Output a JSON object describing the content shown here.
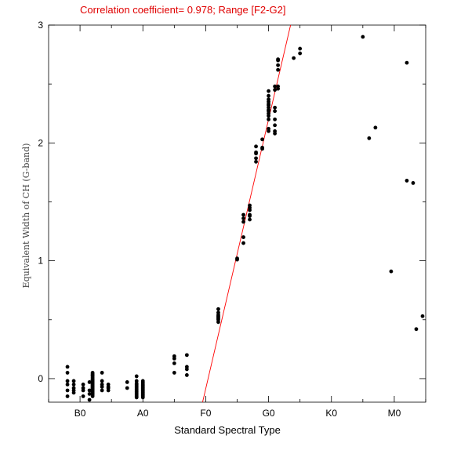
{
  "chart_data": {
    "type": "scatter",
    "title": "Correlation coefficient= 0.978; Range [F2-G2]",
    "xlabel": "Standard Spectral Type",
    "ylabel": "Equivalent Width of CH (G-band)",
    "xlim": [
      -0.5,
      5.5
    ],
    "ylim": [
      -0.2,
      3.0
    ],
    "x_ticks": [
      {
        "value": 0,
        "label": "B0"
      },
      {
        "value": 1,
        "label": "A0"
      },
      {
        "value": 2,
        "label": "F0"
      },
      {
        "value": 3,
        "label": "G0"
      },
      {
        "value": 4,
        "label": "K0"
      },
      {
        "value": 5,
        "label": "M0"
      }
    ],
    "y_ticks": [
      {
        "value": 0,
        "label": "0"
      },
      {
        "value": 1,
        "label": "1"
      },
      {
        "value": 2,
        "label": "2"
      },
      {
        "value": 3,
        "label": "3"
      }
    ],
    "grid": false,
    "series": [
      {
        "color": "#000000",
        "x": [
          -0.2,
          -0.2,
          -0.2,
          -0.2,
          -0.2,
          -0.2,
          -0.1,
          -0.1,
          -0.1,
          -0.1,
          -0.1,
          0.05,
          0.05,
          0.05,
          0.05,
          0.15,
          0.15,
          0.15,
          0.15,
          0.2,
          0.2,
          0.2,
          0.2,
          0.2,
          0.2,
          0.2,
          0.2,
          0.2,
          0.2,
          0.2,
          0.2,
          0.2,
          0.2,
          0.2,
          0.2,
          0.2,
          0.2,
          0.2,
          0.2,
          0.2,
          0.2,
          0.2,
          0.2,
          0.2,
          0.2,
          0.2,
          0.2,
          0.2,
          0.2,
          0.2,
          0.2,
          0.2,
          0.2,
          0.2,
          0.35,
          0.35,
          0.35,
          0.35,
          0.35,
          0.45,
          0.45,
          0.45,
          0.45,
          0.75,
          0.75,
          0.9,
          0.9,
          0.9,
          0.9,
          0.9,
          0.9,
          0.9,
          0.9,
          0.9,
          0.9,
          0.9,
          0.9,
          0.9,
          0.9,
          0.9,
          1.0,
          1.0,
          1.0,
          1.0,
          1.0,
          1.0,
          1.0,
          1.0,
          1.0,
          1.0,
          1.0,
          1.0,
          1.0,
          1.0,
          1.0,
          1.0,
          1.0,
          1.0,
          1.0,
          1.0,
          1.5,
          1.5,
          1.5,
          1.5,
          1.7,
          1.7,
          1.7,
          1.7,
          2.2,
          2.2,
          2.2,
          2.2,
          2.2,
          2.2,
          2.2,
          2.2,
          2.5,
          2.5,
          2.6,
          2.6,
          2.6,
          2.6,
          2.6,
          2.7,
          2.7,
          2.7,
          2.7,
          2.7,
          2.7,
          2.8,
          2.8,
          2.8,
          2.8,
          2.8,
          2.9,
          2.9,
          2.9,
          3.0,
          3.0,
          3.0,
          3.0,
          3.0,
          3.0,
          3.0,
          3.0,
          3.0,
          3.0,
          3.0,
          3.0,
          3.0,
          3.0,
          3.1,
          3.1,
          3.1,
          3.1,
          3.1,
          3.1,
          3.1,
          3.1,
          3.15,
          3.15,
          3.15,
          3.15,
          3.15,
          3.15,
          3.4,
          3.5,
          3.5,
          4.5,
          4.6,
          4.7,
          4.95,
          5.2,
          5.2,
          5.3,
          5.35,
          5.45
        ],
        "y": [
          0.1,
          0.05,
          -0.02,
          -0.05,
          -0.1,
          -0.15,
          -0.02,
          -0.05,
          -0.08,
          -0.1,
          -0.12,
          -0.05,
          -0.08,
          -0.1,
          -0.15,
          -0.03,
          -0.1,
          -0.13,
          -0.18,
          0.05,
          0.04,
          0.03,
          0.02,
          0.0,
          -0.01,
          -0.02,
          -0.03,
          -0.04,
          -0.05,
          -0.06,
          -0.07,
          -0.08,
          -0.09,
          -0.1,
          -0.11,
          -0.12,
          -0.13,
          -0.14,
          -0.15,
          -0.02,
          -0.04,
          -0.06,
          -0.08,
          -0.1,
          -0.12,
          0.03,
          0.01,
          -0.01,
          -0.03,
          -0.05,
          -0.07,
          -0.09,
          -0.11,
          -0.13,
          0.05,
          -0.02,
          -0.05,
          -0.07,
          -0.1,
          -0.05,
          -0.07,
          -0.08,
          -0.1,
          -0.03,
          -0.08,
          0.02,
          -0.02,
          -0.05,
          -0.07,
          -0.08,
          -0.1,
          -0.12,
          -0.13,
          -0.15,
          -0.06,
          -0.09,
          -0.11,
          -0.14,
          -0.04,
          -0.16,
          -0.03,
          -0.05,
          -0.07,
          -0.08,
          -0.1,
          -0.12,
          -0.15,
          -0.02,
          -0.06,
          -0.09,
          -0.11,
          -0.13,
          -0.14,
          -0.04,
          -0.16,
          -0.08,
          -0.1,
          -0.12,
          -0.06,
          -0.14,
          0.17,
          0.13,
          0.05,
          0.19,
          0.2,
          0.1,
          0.03,
          0.08,
          0.59,
          0.56,
          0.54,
          0.52,
          0.5,
          0.48,
          0.53,
          0.51,
          1.02,
          1.01,
          1.39,
          1.36,
          1.33,
          1.2,
          1.15,
          1.47,
          1.45,
          1.43,
          1.38,
          1.35,
          1.39,
          1.97,
          1.92,
          1.84,
          1.87,
          1.91,
          1.95,
          2.03,
          1.96,
          2.44,
          2.4,
          2.37,
          2.33,
          2.3,
          2.27,
          2.23,
          2.2,
          2.12,
          2.35,
          2.32,
          2.25,
          2.28,
          2.1,
          2.48,
          2.45,
          2.3,
          2.27,
          2.2,
          2.1,
          2.08,
          2.15,
          2.71,
          2.66,
          2.62,
          2.48,
          2.46,
          2.7,
          2.72,
          2.8,
          2.76,
          2.9,
          2.04,
          2.13,
          0.91,
          2.68,
          1.68,
          1.66,
          0.42,
          0.53
        ]
      }
    ],
    "fit_line": {
      "color": "#ff0000",
      "x": [
        1.95,
        3.35
      ],
      "y": [
        -0.2,
        3.0
      ]
    }
  }
}
